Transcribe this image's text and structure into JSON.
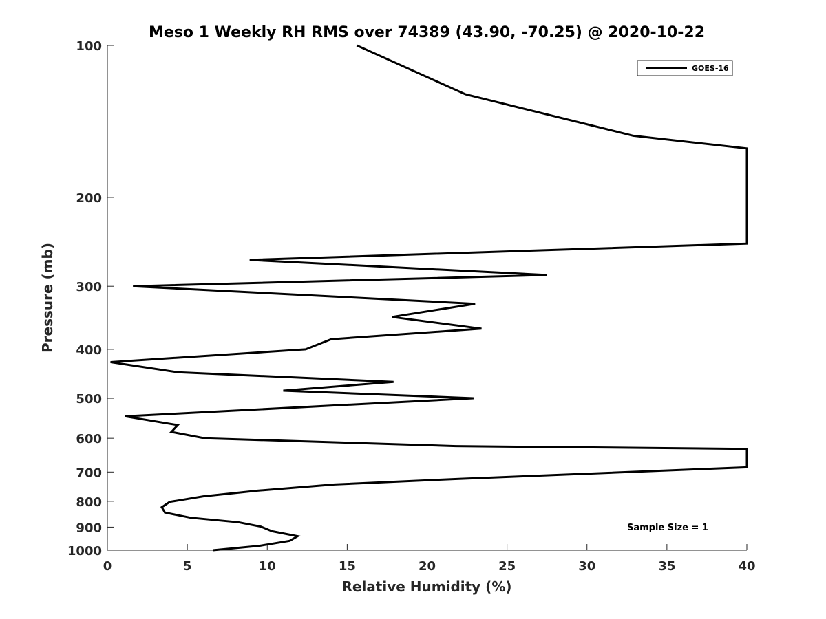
{
  "chart_data": {
    "type": "line",
    "title": "Meso 1 Weekly RH RMS over 74389 (43.90, -70.25) @ 2020-10-22",
    "xlabel": "Relative Humidity (%)",
    "ylabel": "Pressure (mb)",
    "xlim": [
      0,
      40
    ],
    "ylim": [
      100,
      1000
    ],
    "y_scale": "log",
    "y_reversed": true,
    "grid": false,
    "legend": {
      "position": "top-right",
      "entries": [
        "GOES-16"
      ]
    },
    "x_ticks": [
      "0",
      "5",
      "10",
      "15",
      "20",
      "25",
      "30",
      "35",
      "40"
    ],
    "y_ticks": [
      "100",
      "200",
      "300",
      "400",
      "500",
      "600",
      "700",
      "800",
      "900",
      "1000"
    ],
    "annotation": "Sample Size = 1",
    "series": [
      {
        "name": "GOES-16",
        "color": "#000000",
        "points": [
          [
            15.6,
            100
          ],
          [
            22.4,
            125
          ],
          [
            32.9,
            151
          ],
          [
            40,
            160
          ],
          [
            40,
            247
          ],
          [
            8.9,
            266
          ],
          [
            27.5,
            285
          ],
          [
            1.6,
            300
          ],
          [
            23.0,
            325
          ],
          [
            17.8,
            345
          ],
          [
            23.4,
            364
          ],
          [
            14.0,
            382
          ],
          [
            12.4,
            400
          ],
          [
            0.2,
            424
          ],
          [
            4.4,
            444
          ],
          [
            17.9,
            464
          ],
          [
            11.0,
            483
          ],
          [
            22.9,
            500
          ],
          [
            1.1,
            543
          ],
          [
            4.4,
            565
          ],
          [
            4.0,
            583
          ],
          [
            6.1,
            600
          ],
          [
            21.8,
            622
          ],
          [
            40,
            630
          ],
          [
            40,
            685
          ],
          [
            22.0,
            722
          ],
          [
            14.2,
            741
          ],
          [
            9.4,
            762
          ],
          [
            6.0,
            782
          ],
          [
            3.9,
            802
          ],
          [
            3.4,
            822
          ],
          [
            3.6,
            842
          ],
          [
            5.2,
            862
          ],
          [
            8.2,
            880
          ],
          [
            9.6,
            898
          ],
          [
            10.3,
            917
          ],
          [
            11.9,
            938
          ],
          [
            11.4,
            958
          ],
          [
            9.5,
            980
          ],
          [
            6.6,
            1000
          ]
        ]
      }
    ]
  }
}
